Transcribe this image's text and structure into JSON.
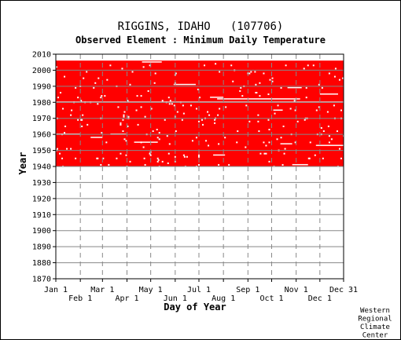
{
  "chart_data": {
    "type": "heatmap",
    "title": "RIGGINS, IDAHO   (107706)",
    "subtitle": "Observed Element : Minimum Daily Temperature",
    "xlabel": "Day of Year",
    "ylabel": "Year",
    "xlim": [
      1,
      365
    ],
    "ylim": [
      1870,
      2010
    ],
    "x_ticks_upper": [
      {
        "label": "Jan 1",
        "day": 1
      },
      {
        "label": "Mar 1",
        "day": 60
      },
      {
        "label": "May 1",
        "day": 121
      },
      {
        "label": "Jul 1",
        "day": 182
      },
      {
        "label": "Sep 1",
        "day": 244
      },
      {
        "label": "Nov 1",
        "day": 305
      },
      {
        "label": "Dec 31",
        "day": 365
      }
    ],
    "x_ticks_lower": [
      {
        "label": "Feb 1",
        "day": 32
      },
      {
        "label": "Apr 1",
        "day": 91
      },
      {
        "label": "Jun 1",
        "day": 152
      },
      {
        "label": "Aug 1",
        "day": 213
      },
      {
        "label": "Oct 1",
        "day": 274
      },
      {
        "label": "Dec 1",
        "day": 335
      }
    ],
    "y_ticks": [
      2010,
      2000,
      1990,
      1980,
      1970,
      1960,
      1950,
      1940,
      1930,
      1920,
      1910,
      1900,
      1890,
      1880,
      1870
    ],
    "grid": true,
    "data_present": {
      "start_year": 1940,
      "end_year": 2006,
      "color": "#ff0000"
    },
    "missing_data": {
      "color": "#ffffff",
      "years_fully_missing": [
        1980
      ],
      "segments": [
        {
          "year": 2005,
          "start_day": 110,
          "end_day": 135
        },
        {
          "year": 1991,
          "start_day": 150,
          "end_day": 178
        },
        {
          "year": 1989,
          "start_day": 294,
          "end_day": 312
        },
        {
          "year": 1985,
          "start_day": 335,
          "end_day": 358
        },
        {
          "year": 1983,
          "start_day": 196,
          "end_day": 213
        },
        {
          "year": 1982,
          "start_day": 205,
          "end_day": 310
        },
        {
          "year": 1975,
          "start_day": 276,
          "end_day": 288
        },
        {
          "year": 1960,
          "start_day": 1,
          "end_day": 32
        },
        {
          "year": 1960,
          "start_day": 70,
          "end_day": 90
        },
        {
          "year": 1958,
          "start_day": 45,
          "end_day": 60
        },
        {
          "year": 1955,
          "start_day": 100,
          "end_day": 130
        },
        {
          "year": 1954,
          "start_day": 285,
          "end_day": 300
        },
        {
          "year": 1953,
          "start_day": 330,
          "end_day": 365
        },
        {
          "year": 1947,
          "start_day": 200,
          "end_day": 215
        },
        {
          "year": 1941,
          "start_day": 300,
          "end_day": 320
        }
      ]
    }
  },
  "credit": [
    "Western",
    "Regional",
    "Climate",
    "Center"
  ],
  "colors": {
    "data": "#ff0000",
    "grid": "#888888",
    "axis": "#000000"
  }
}
